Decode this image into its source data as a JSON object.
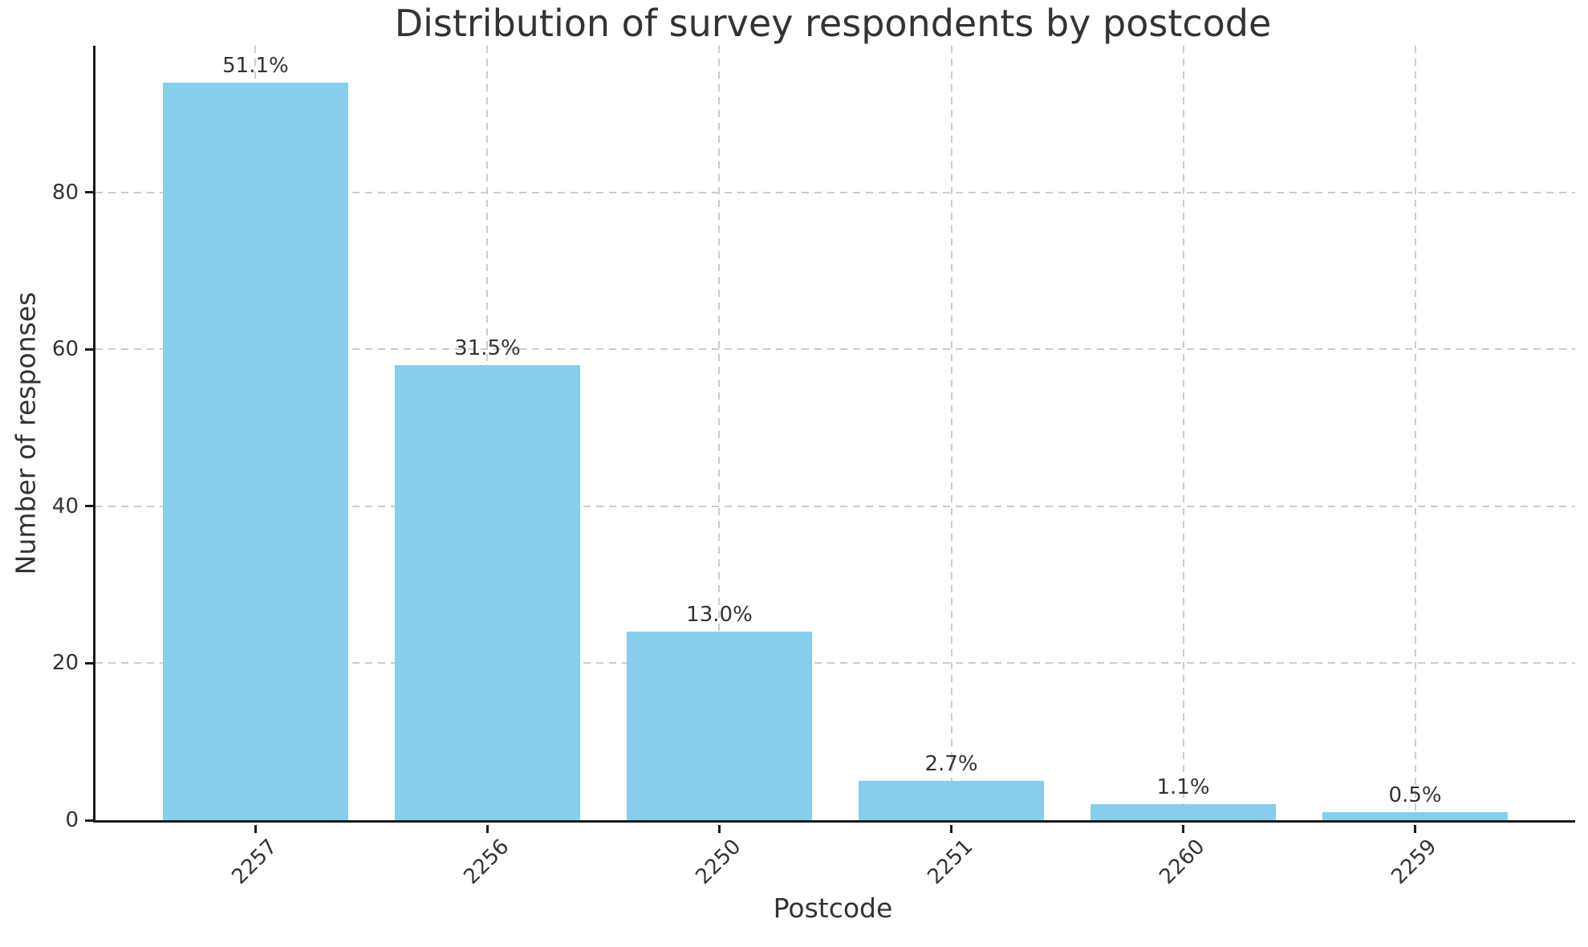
{
  "chart_data": {
    "type": "bar",
    "title": "Distribution of survey respondents by postcode",
    "xlabel": "Postcode",
    "ylabel": "Number of responses",
    "categories": [
      "2257",
      "2256",
      "2250",
      "2251",
      "2260",
      "2259"
    ],
    "values": [
      94,
      58,
      24,
      5,
      2,
      1
    ],
    "bar_labels": [
      "51.1%",
      "31.5%",
      "13.0%",
      "2.7%",
      "1.1%",
      "0.5%"
    ],
    "total_responses": 184,
    "yticks": [
      0,
      20,
      40,
      60,
      80
    ],
    "ylim": [
      0,
      98.7
    ],
    "bar_color": "#87CEEB",
    "grid": "dashed, both axes",
    "legend_position": "none"
  }
}
